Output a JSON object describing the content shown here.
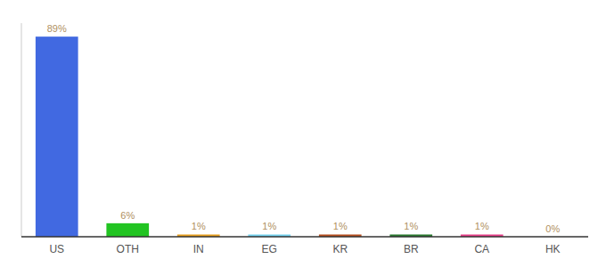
{
  "chart_data": {
    "type": "bar",
    "categories": [
      "US",
      "OTH",
      "IN",
      "EG",
      "KR",
      "BR",
      "CA",
      "HK"
    ],
    "values": [
      89,
      6,
      1,
      1,
      1,
      1,
      1,
      0
    ],
    "value_labels": [
      "89%",
      "6%",
      "1%",
      "1%",
      "1%",
      "1%",
      "1%",
      "0%"
    ],
    "colors": [
      "#4169e1",
      "#22c422",
      "#e8a020",
      "#76d4f0",
      "#b85020",
      "#2a7a30",
      "#e8408a",
      "#aaaaaa"
    ],
    "ylim": [
      0,
      95
    ],
    "data_labels": true,
    "tick_labels": "x",
    "grid": false
  }
}
